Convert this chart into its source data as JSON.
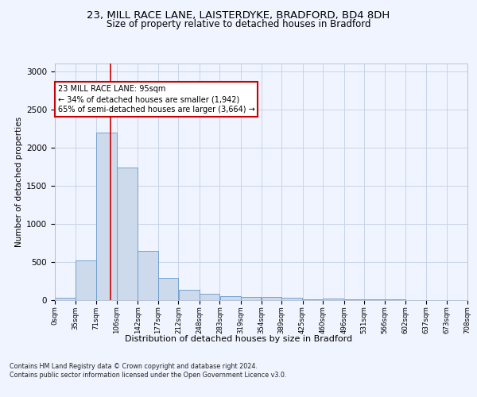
{
  "title_line1": "23, MILL RACE LANE, LAISTERDYKE, BRADFORD, BD4 8DH",
  "title_line2": "Size of property relative to detached houses in Bradford",
  "xlabel": "Distribution of detached houses by size in Bradford",
  "ylabel": "Number of detached properties",
  "bar_color": "#ccdaec",
  "bar_edge_color": "#6699cc",
  "vline_color": "#cc0000",
  "vline_x": 95,
  "annotation_text": "23 MILL RACE LANE: 95sqm\n← 34% of detached houses are smaller (1,942)\n65% of semi-detached houses are larger (3,664) →",
  "annotation_box_color": "#ffffff",
  "annotation_box_edge": "#cc0000",
  "footer_text": "Contains HM Land Registry data © Crown copyright and database right 2024.\nContains public sector information licensed under the Open Government Licence v3.0.",
  "bin_edges": [
    0,
    35,
    71,
    106,
    142,
    177,
    212,
    248,
    283,
    319,
    354,
    389,
    425,
    460,
    496,
    531,
    566,
    602,
    637,
    673,
    708
  ],
  "bin_labels": [
    "0sqm",
    "35sqm",
    "71sqm",
    "106sqm",
    "142sqm",
    "177sqm",
    "212sqm",
    "248sqm",
    "283sqm",
    "319sqm",
    "354sqm",
    "389sqm",
    "425sqm",
    "460sqm",
    "496sqm",
    "531sqm",
    "566sqm",
    "602sqm",
    "637sqm",
    "673sqm",
    "708sqm"
  ],
  "counts": [
    30,
    520,
    2190,
    1730,
    640,
    290,
    130,
    75,
    45,
    35,
    35,
    25,
    10,
    20,
    5,
    5,
    5,
    0,
    0,
    0
  ],
  "ylim": [
    0,
    3100
  ],
  "yticks": [
    0,
    500,
    1000,
    1500,
    2000,
    2500,
    3000
  ],
  "background_color": "#f0f4ff",
  "grid_color": "#c8d4e8",
  "title_fontsize": 9.5,
  "subtitle_fontsize": 8.5,
  "annotation_fontsize": 7.0,
  "footer_fontsize": 5.8,
  "ylabel_fontsize": 7.5,
  "xlabel_fontsize": 8.0,
  "ytick_fontsize": 7.5,
  "xtick_fontsize": 6.2
}
